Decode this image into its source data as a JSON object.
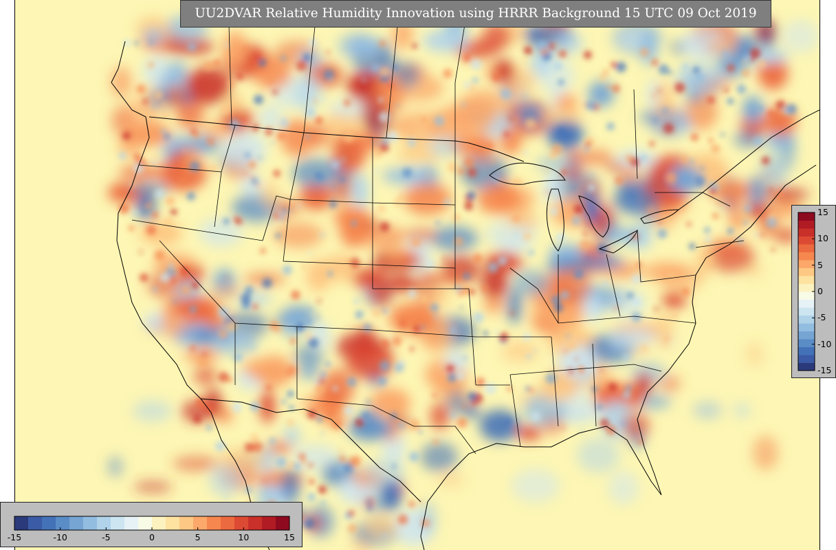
{
  "title": "UU2DVAR Relative Humidity Innovation using HRRR Background 15 UTC 09 Oct 2019",
  "colorbar": {
    "min": -15,
    "max": 15,
    "ticks_horizontal": [
      "-15",
      "-10",
      "-5",
      "0",
      "5",
      "10",
      "15"
    ],
    "ticks_vertical": [
      "15",
      "10",
      "5",
      "0",
      "-5",
      "-10",
      "-15"
    ],
    "colors": [
      "#2b3a7a",
      "#3b5ba6",
      "#4472b8",
      "#5a8cc6",
      "#76a5d3",
      "#93bde0",
      "#b0d3ea",
      "#cde5f1",
      "#e7f2f6",
      "#f8fbe6",
      "#fcf2c0",
      "#fde2a0",
      "#fdc883",
      "#fba86a",
      "#f6874f",
      "#ec6a3f",
      "#dd4a33",
      "#c9302a",
      "#b11b24",
      "#8e0a1f"
    ]
  }
}
